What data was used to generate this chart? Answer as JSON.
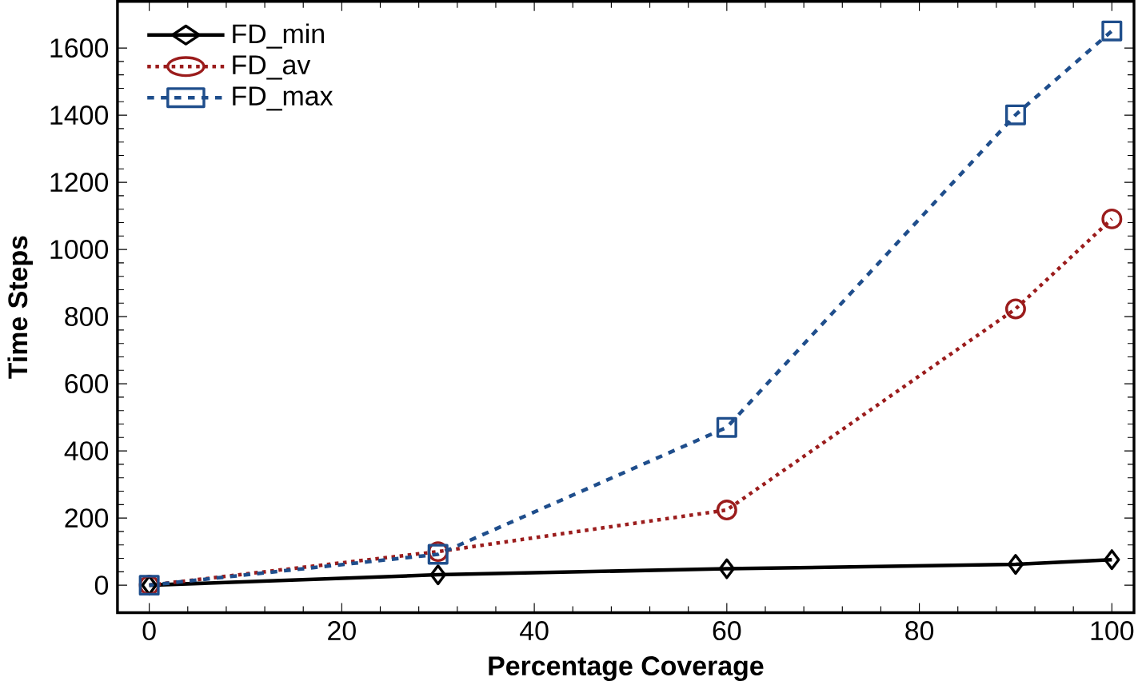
{
  "chart_data": {
    "type": "line",
    "xlabel": "Percentage Coverage",
    "ylabel": "Time Steps",
    "x": [
      0,
      30,
      60,
      90,
      100
    ],
    "series": [
      {
        "name": "FD_min",
        "color": "#000000",
        "values": [
          0,
          31,
          49,
          62,
          76
        ],
        "marker": "diamond",
        "line_style": "solid"
      },
      {
        "name": "FD_av",
        "color": "#9b1c1c",
        "values": [
          0,
          100,
          224,
          823,
          1091
        ],
        "marker": "circle",
        "line_style": "dotted"
      },
      {
        "name": "FD_max",
        "color": "#1f4e8c",
        "values": [
          0,
          92,
          470,
          1401,
          1651
        ],
        "marker": "square",
        "line_style": "dashed"
      }
    ],
    "xlim": [
      -3.3,
      102.3
    ],
    "ylim": [
      -82,
      1739
    ],
    "xticks": [
      0,
      20,
      40,
      60,
      80,
      100
    ],
    "yticks": [
      0,
      200,
      400,
      600,
      800,
      1000,
      1200,
      1400,
      1600
    ],
    "grid": false,
    "legend": "top left"
  }
}
